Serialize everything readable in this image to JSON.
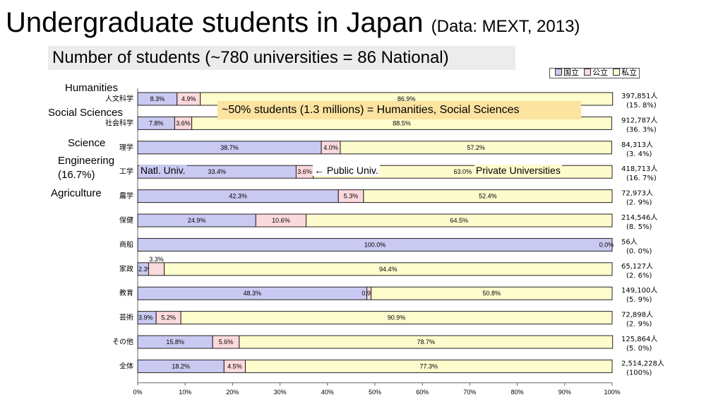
{
  "slide": {
    "title": "Undergraduate students in Japan",
    "title_source": "(Data: MEXT, 2013)",
    "subtitle": "Number of students (~780 universities = 86 National)",
    "annotation": "~50% students (1.3 millions) = Humanities, Social Sciences",
    "engineering_share": "(16.7%)",
    "natl_label": "Natl. Univ.",
    "public_label": "← Public Univ.",
    "private_label": "Private Universities"
  },
  "legend": {
    "national": "国立",
    "public": "公立",
    "private": "私立"
  },
  "chart_data": {
    "type": "bar",
    "orientation": "horizontal",
    "stacked": "100%",
    "categories": [
      "人文科学",
      "社会科学",
      "理学",
      "工学",
      "農学",
      "保健",
      "商船",
      "家政",
      "教育",
      "芸術",
      "その他",
      "全体"
    ],
    "categories_en": [
      "Humanities",
      "Social Sciences",
      "Science",
      "Engineering",
      "Agriculture",
      "",
      "",
      "",
      "",
      "",
      "",
      ""
    ],
    "series": [
      {
        "name": "国立",
        "color": "#c9c9f2",
        "values": [
          8.3,
          7.8,
          38.7,
          33.4,
          42.3,
          24.9,
          100.0,
          2.3,
          48.3,
          3.9,
          15.8,
          18.2
        ],
        "labels": [
          "8.3%",
          "7.8%",
          "38.7%",
          "33.4%",
          "42.3%",
          "24.9%",
          "100.0%",
          "2.3%",
          "48.3%",
          "3.9%",
          "15.8%",
          "18.2%"
        ]
      },
      {
        "name": "公立",
        "color": "#fbd9dc",
        "values": [
          4.9,
          3.6,
          4.0,
          3.6,
          5.3,
          10.6,
          0.0,
          3.3,
          0.9,
          5.2,
          5.6,
          4.5
        ],
        "labels": [
          "4.9%",
          "3.6%",
          "4.0%",
          "3.6%",
          "5.3%",
          "10.6%",
          "",
          "3.3%",
          "0.9%",
          "5.2%",
          "5.6%",
          "4.5%"
        ]
      },
      {
        "name": "私立",
        "color": "#fdfccd",
        "values": [
          86.9,
          88.5,
          57.2,
          63.0,
          52.4,
          64.5,
          0.0,
          94.4,
          50.8,
          90.9,
          78.7,
          77.3
        ],
        "labels": [
          "86.9%",
          "88.5%",
          "57.2%",
          "63.0%",
          "52.4%",
          "64.5%",
          "0.0%",
          "94.4%",
          "50.8%",
          "90.9%",
          "78.7%",
          "77.3%"
        ]
      }
    ],
    "totals": [
      "397,851人",
      "912,787人",
      "84,313人",
      "418,713人",
      "72,973人",
      "214,546人",
      "56人",
      "65,127人",
      "149,100人",
      "72,898人",
      "125,864人",
      "2,514,228人"
    ],
    "shares": [
      "(15. 8%)",
      "(36. 3%)",
      "(3. 4%)",
      "(16. 7%)",
      "(2. 9%)",
      "(8. 5%)",
      "(0. 0%)",
      "(2. 6%)",
      "(5. 9%)",
      "(2. 9%)",
      "(5. 0%)",
      "(100%)"
    ],
    "xticks": [
      "0%",
      "10%",
      "20%",
      "30%",
      "40%",
      "50%",
      "60%",
      "70%",
      "80%",
      "90%",
      "100%"
    ],
    "xlim": [
      0,
      100
    ]
  }
}
